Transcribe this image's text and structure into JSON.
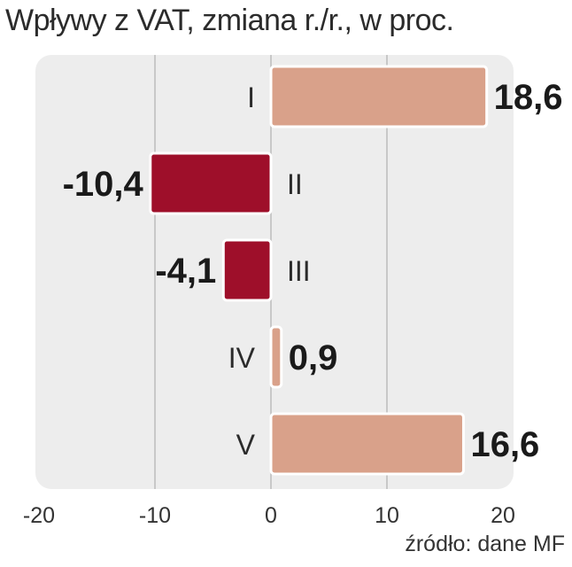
{
  "title": "Wpływy z VAT, zmiana r./r., w proc.",
  "source": "źródło: dane MF",
  "colors": {
    "panel": "#ededed",
    "grid": "#b5b5b5",
    "positive": "#d9a18a",
    "negative": "#9e0f2a",
    "text": "#2b2b2b"
  },
  "chart_data": {
    "type": "bar",
    "orientation": "horizontal",
    "categories": [
      "I",
      "II",
      "III",
      "IV",
      "V"
    ],
    "values": [
      18.6,
      -10.4,
      -4.1,
      0.9,
      16.6
    ],
    "value_labels": [
      "18,6",
      "-10,4",
      "-4,1",
      "0,9",
      "16,6"
    ],
    "xlim": [
      -20,
      20
    ],
    "xticks": [
      -20,
      -10,
      0,
      10,
      20
    ],
    "xtick_labels": [
      "-20",
      "-10",
      "0",
      "10",
      "20"
    ],
    "grid": true
  }
}
